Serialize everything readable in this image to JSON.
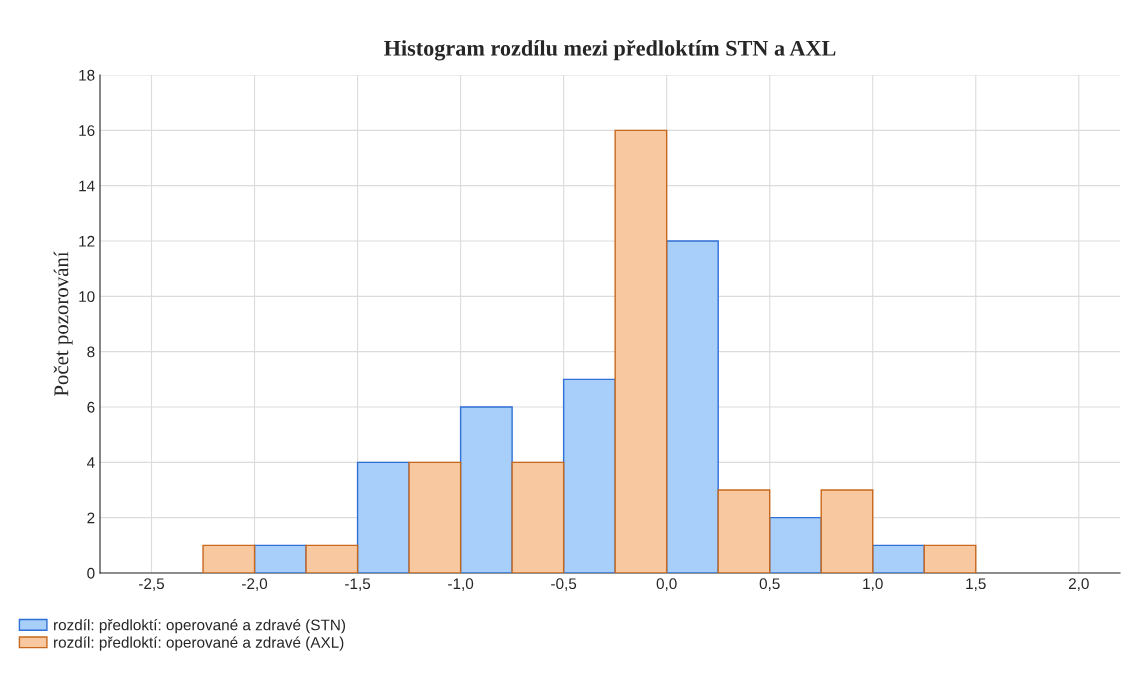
{
  "chart_data": {
    "type": "histogram",
    "title": "Histogram rozdílu mezi předloktím STN a AXL",
    "ylabel": "Počet pozorování",
    "bins": [
      -2.25,
      -2.0,
      -1.75,
      -1.5,
      -1.25,
      -1.0,
      -0.75,
      -0.5,
      -0.25,
      0.0,
      0.25,
      0.5,
      0.75,
      1.0,
      1.25,
      1.5
    ],
    "series": [
      {
        "name": "rozdíl: předloktí: operované a zdravé (STN)",
        "color": "#a8cffa",
        "values": [
          null,
          1,
          null,
          4,
          null,
          6,
          null,
          7,
          null,
          12,
          null,
          2,
          null,
          1,
          null
        ]
      },
      {
        "name": "rozdíl: předloktí: operované a zdravé (AXL)",
        "color": "#f8c8a0",
        "values": [
          1,
          null,
          1,
          null,
          4,
          null,
          4,
          null,
          16,
          null,
          3,
          null,
          3,
          null,
          1
        ]
      }
    ],
    "xlim": [
      -2.75,
      2.2
    ],
    "xticks": [
      {
        "value": -2.5,
        "label": "-2,5"
      },
      {
        "value": -2.0,
        "label": "-2,0"
      },
      {
        "value": -1.5,
        "label": "-1,5"
      },
      {
        "value": -1.0,
        "label": "-1,0"
      },
      {
        "value": -0.5,
        "label": "-0,5"
      },
      {
        "value": 0.0,
        "label": "0,0"
      },
      {
        "value": 0.5,
        "label": "0,5"
      },
      {
        "value": 1.0,
        "label": "1,0"
      },
      {
        "value": 1.5,
        "label": "1,5"
      },
      {
        "value": 2.0,
        "label": "2,0"
      }
    ],
    "ylim": [
      0,
      18
    ],
    "yticks": [
      0,
      2,
      4,
      6,
      8,
      10,
      12,
      14,
      16,
      18
    ],
    "grid": true,
    "legend": "bottom left"
  }
}
